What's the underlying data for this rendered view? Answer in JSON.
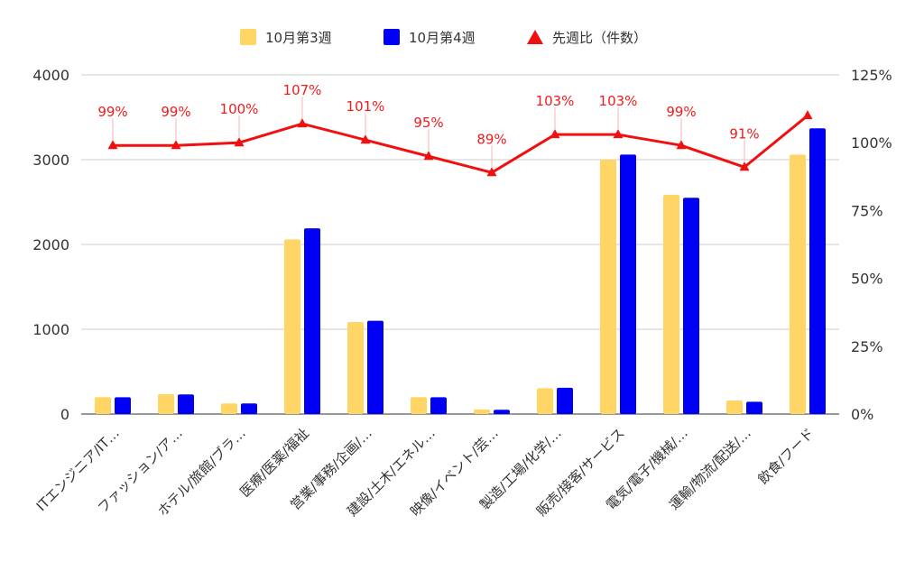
{
  "colors": {
    "series1": "#ffd666",
    "series2": "#0000f5",
    "line": "#f20f0f",
    "grid": "#cccccc",
    "text": "#333333"
  },
  "legend": [
    {
      "label": "10月第3週",
      "shape": "square",
      "color": "#ffd666"
    },
    {
      "label": "10月第4週",
      "shape": "square",
      "color": "#0000f5"
    },
    {
      "label": "先週比（件数）",
      "shape": "triangle",
      "color": "#f20f0f"
    }
  ],
  "chart_data": {
    "type": "bar",
    "categories": [
      "ITエンジニア/IT…",
      "ファッション/ア…",
      "ホテル/旅館/ブラ…",
      "医療/医薬/福祉",
      "営業/事務/企画/…",
      "建設/土木/エネル…",
      "映像/イベント/芸…",
      "製造/工場/化学/…",
      "販売/接客/サービス",
      "電気/電子/機械/…",
      "運輸/物流/配送/…",
      "飲食/フード"
    ],
    "series": [
      {
        "name": "10月第3週",
        "axis": "left",
        "values": [
          200,
          235,
          125,
          2060,
          1085,
          200,
          55,
          305,
          3000,
          2585,
          160,
          3060
        ]
      },
      {
        "name": "10月第4週",
        "axis": "left",
        "values": [
          198,
          232,
          125,
          2190,
          1100,
          198,
          50,
          310,
          3060,
          2550,
          145,
          3370
        ]
      },
      {
        "name": "先週比（件数）",
        "type": "line",
        "axis": "right",
        "values": [
          99,
          99,
          100,
          107,
          101,
          95,
          89,
          103,
          103,
          99,
          91,
          110
        ],
        "data_labels": [
          "99%",
          "99%",
          "100%",
          "107%",
          "101%",
          "95%",
          "89%",
          "103%",
          "103%",
          "99%",
          "91%",
          ""
        ]
      }
    ],
    "y_left": {
      "min": 0,
      "max": 4000,
      "ticks": [
        "0",
        "1000",
        "2000",
        "3000",
        "4000"
      ]
    },
    "y_right": {
      "min": 0,
      "max": 125,
      "ticks": [
        "0%",
        "25%",
        "50%",
        "75%",
        "100%",
        "125%"
      ]
    },
    "grid": true,
    "legend_position": "top"
  }
}
